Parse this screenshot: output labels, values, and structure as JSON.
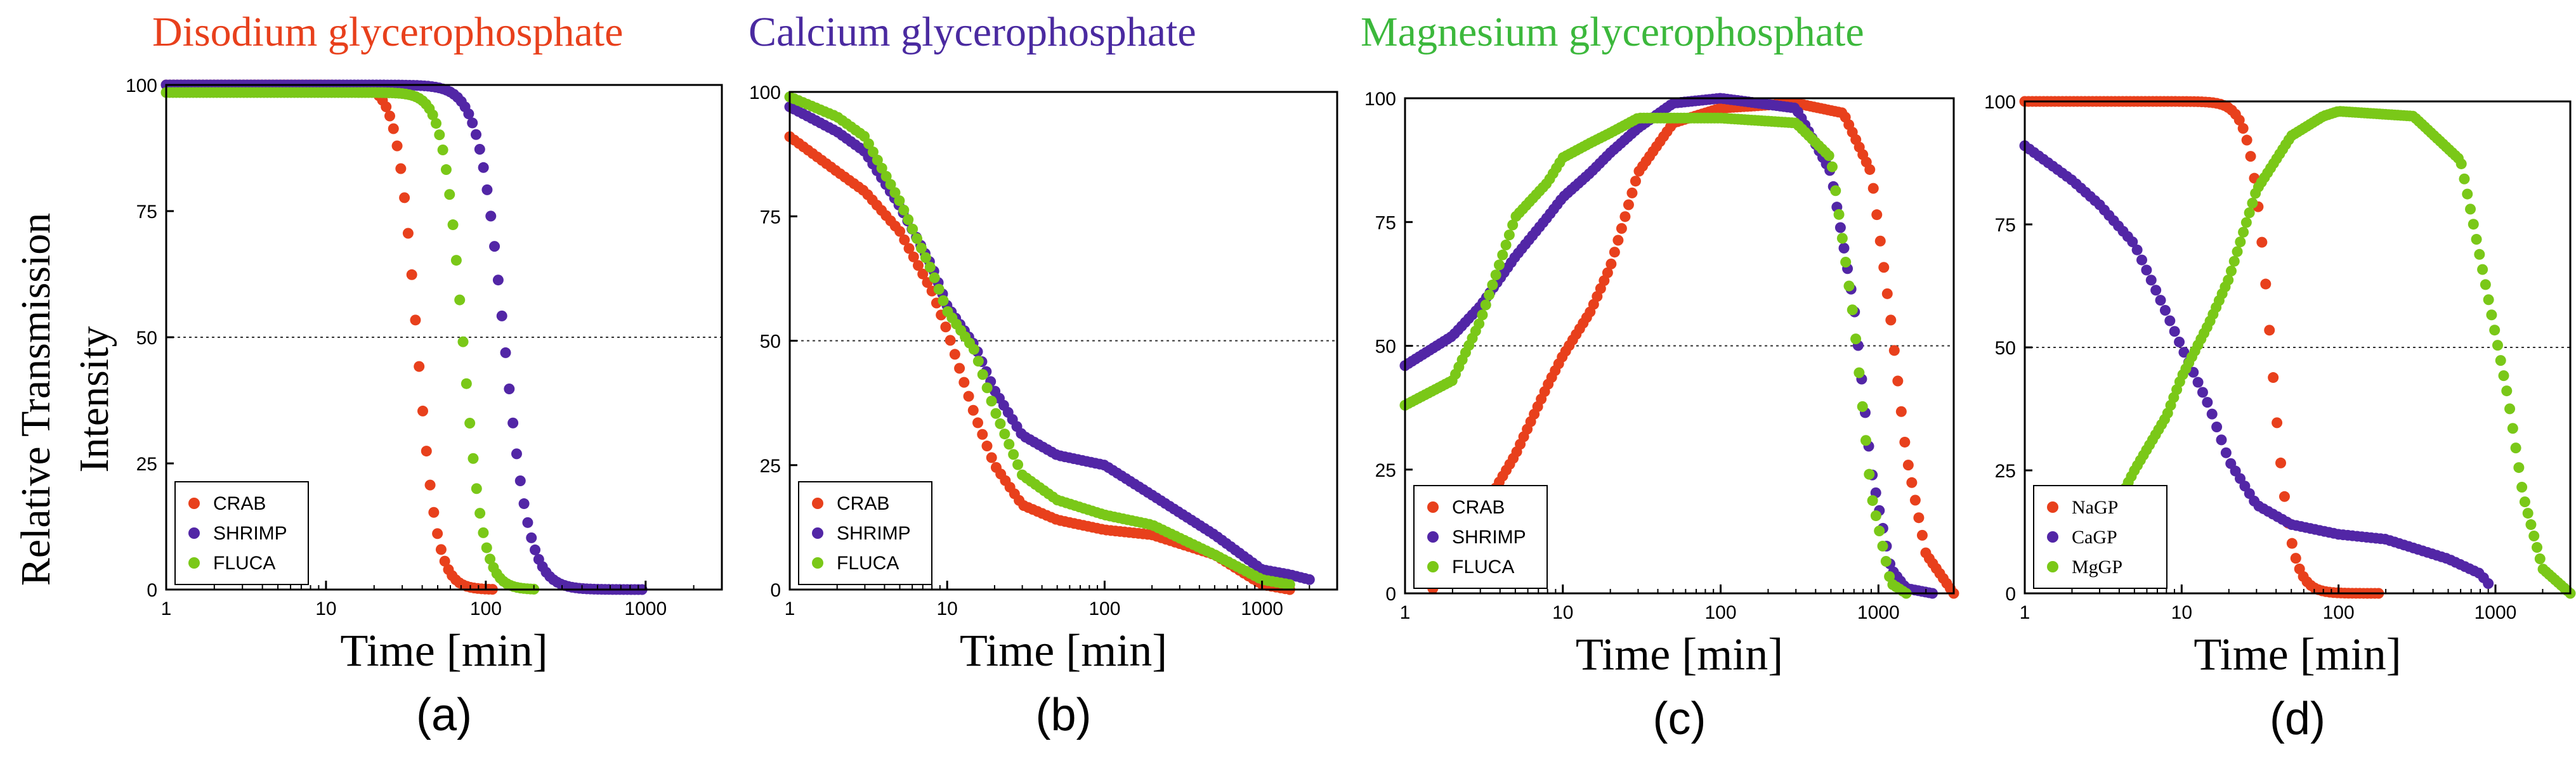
{
  "titles": [
    {
      "text": "Disodium glycerophosphate",
      "color": "#e8401c"
    },
    {
      "text": "Calcium glycerophosphate",
      "color": "#4a2aa0"
    },
    {
      "text": "Magnesium glycerophosphate",
      "color": "#3cb83c"
    }
  ],
  "ylabel_line1": "Relative Transmission",
  "ylabel_line2": "Intensity",
  "colors": {
    "red": "#e8401c",
    "purple": "#5226a6",
    "green": "#7ac818",
    "axis": "#000000"
  },
  "chart_data": [
    {
      "type": "scatter",
      "panel_label": "(a)",
      "xlabel": "Time [min]",
      "xscale": "log",
      "xlim": [
        1,
        3000
      ],
      "ylim": [
        0,
        100
      ],
      "xticks": [
        1,
        10,
        100,
        1000
      ],
      "xtick_labels": [
        "1",
        "10",
        "100",
        "1000"
      ],
      "yticks": [
        0,
        25,
        50,
        75,
        100
      ],
      "ytick_labels": [
        "0",
        "25",
        "50",
        "75",
        "100"
      ],
      "reference_line_y": 50,
      "legend_position": "bottom-left",
      "series": [
        {
          "name": "CRAB",
          "color": "#e8401c",
          "model": {
            "kind": "fall",
            "mid": 37,
            "steep": 7,
            "top": 100,
            "bottom": 0,
            "xmin": 1,
            "xmax": 110,
            "n": 90
          }
        },
        {
          "name": "SHRIMP",
          "color": "#5226a6",
          "model": {
            "kind": "fall",
            "mid": 130,
            "steep": 5.5,
            "top": 100,
            "bottom": 0,
            "xmin": 1,
            "xmax": 950,
            "n": 130
          }
        },
        {
          "name": "FLUCA",
          "color": "#7ac818",
          "model": {
            "kind": "fall",
            "mid": 72,
            "steep": 7,
            "top": 98.5,
            "bottom": 0,
            "xmin": 1,
            "xmax": 200,
            "n": 110
          }
        }
      ]
    },
    {
      "type": "scatter",
      "panel_label": "(b)",
      "xlabel": "Time [min]",
      "xscale": "log",
      "xlim": [
        1,
        3000
      ],
      "ylim": [
        0,
        100
      ],
      "xticks": [
        1,
        10,
        100,
        1000
      ],
      "xtick_labels": [
        "1",
        "10",
        "100",
        "1000"
      ],
      "yticks": [
        0,
        25,
        50,
        75,
        100
      ],
      "ytick_labels": [
        "0",
        "25",
        "50",
        "75",
        "100"
      ],
      "reference_line_y": 50,
      "legend_position": "bottom-left",
      "series": [
        {
          "name": "CRAB",
          "color": "#e8401c",
          "model": {
            "kind": "pw",
            "pts": [
              [
                1,
                91
              ],
              [
                2,
                84
              ],
              [
                3,
                80
              ],
              [
                5,
                72
              ],
              [
                8,
                60
              ],
              [
                10,
                52
              ],
              [
                15,
                35
              ],
              [
                20,
                25
              ],
              [
                30,
                17
              ],
              [
                50,
                14
              ],
              [
                100,
                12
              ],
              [
                200,
                11
              ],
              [
                500,
                7
              ],
              [
                1000,
                1
              ],
              [
                1500,
                0
              ]
            ],
            "n": 110
          }
        },
        {
          "name": "SHRIMP",
          "color": "#5226a6",
          "model": {
            "kind": "pw",
            "pts": [
              [
                1,
                97
              ],
              [
                2,
                92
              ],
              [
                3,
                88
              ],
              [
                5,
                77
              ],
              [
                8,
                65
              ],
              [
                10,
                57
              ],
              [
                15,
                49
              ],
              [
                20,
                40
              ],
              [
                30,
                31
              ],
              [
                50,
                27
              ],
              [
                100,
                25
              ],
              [
                200,
                19
              ],
              [
                500,
                11
              ],
              [
                1000,
                4
              ],
              [
                1500,
                3
              ],
              [
                2000,
                2
              ]
            ],
            "n": 120
          }
        },
        {
          "name": "FLUCA",
          "color": "#7ac818",
          "model": {
            "kind": "pw",
            "pts": [
              [
                1,
                99
              ],
              [
                2,
                95
              ],
              [
                3,
                91
              ],
              [
                5,
                78
              ],
              [
                8,
                64
              ],
              [
                10,
                56
              ],
              [
                15,
                48
              ],
              [
                20,
                36
              ],
              [
                30,
                23
              ],
              [
                50,
                18
              ],
              [
                100,
                15
              ],
              [
                200,
                13
              ],
              [
                500,
                7
              ],
              [
                1000,
                2
              ],
              [
                1500,
                1
              ]
            ],
            "n": 115
          }
        }
      ]
    },
    {
      "type": "scatter",
      "panel_label": "(c)",
      "xlabel": "Time [min]",
      "xscale": "log",
      "xlim": [
        1,
        3000
      ],
      "ylim": [
        0,
        100
      ],
      "xticks": [
        1,
        10,
        100,
        1000
      ],
      "xtick_labels": [
        "1",
        "10",
        "100",
        "1000"
      ],
      "yticks": [
        0,
        25,
        50,
        75,
        100
      ],
      "ytick_labels": [
        "0",
        "25",
        "50",
        "75",
        "100"
      ],
      "reference_line_y": 50,
      "legend_position": "bottom-left",
      "series": [
        {
          "name": "CRAB",
          "color": "#e8401c",
          "model": {
            "kind": "pw",
            "pts": [
              [
                1.5,
                1
              ],
              [
                2,
                10
              ],
              [
                3,
                16
              ],
              [
                5,
                28
              ],
              [
                8,
                42
              ],
              [
                10,
                48
              ],
              [
                15,
                57
              ],
              [
                20,
                66
              ],
              [
                30,
                85
              ],
              [
                50,
                95
              ],
              [
                100,
                98
              ],
              [
                300,
                99
              ],
              [
                600,
                97
              ],
              [
                900,
                85
              ],
              [
                1200,
                55
              ],
              [
                1500,
                28
              ],
              [
                2000,
                8
              ],
              [
                3000,
                0
              ]
            ],
            "n": 150
          }
        },
        {
          "name": "SHRIMP",
          "color": "#5226a6",
          "model": {
            "kind": "pw",
            "pts": [
              [
                1,
                46
              ],
              [
                2,
                52
              ],
              [
                3,
                58
              ],
              [
                5,
                68
              ],
              [
                8,
                76
              ],
              [
                10,
                80
              ],
              [
                15,
                85
              ],
              [
                20,
                89
              ],
              [
                30,
                94
              ],
              [
                50,
                99
              ],
              [
                100,
                100
              ],
              [
                300,
                98
              ],
              [
                500,
                85
              ],
              [
                700,
                58
              ],
              [
                900,
                25
              ],
              [
                1200,
                5
              ],
              [
                1500,
                1
              ],
              [
                2200,
                0
              ]
            ],
            "n": 150
          }
        },
        {
          "name": "FLUCA",
          "color": "#7ac818",
          "model": {
            "kind": "pw",
            "pts": [
              [
                1,
                38
              ],
              [
                2,
                43
              ],
              [
                3,
                55
              ],
              [
                5,
                76
              ],
              [
                8,
                83
              ],
              [
                10,
                88
              ],
              [
                15,
                91
              ],
              [
                20,
                93
              ],
              [
                30,
                96
              ],
              [
                50,
                96
              ],
              [
                100,
                96
              ],
              [
                300,
                95
              ],
              [
                500,
                88
              ],
              [
                700,
                55
              ],
              [
                900,
                20
              ],
              [
                1200,
                2
              ],
              [
                1500,
                0
              ]
            ],
            "n": 150
          }
        }
      ]
    },
    {
      "type": "scatter",
      "panel_label": "(d)",
      "xlabel": "Time [min]",
      "xscale": "log",
      "xlim": [
        1,
        3000
      ],
      "ylim": [
        0,
        100
      ],
      "xticks": [
        1,
        10,
        100,
        1000
      ],
      "xtick_labels": [
        "1",
        "10",
        "100",
        "1000"
      ],
      "yticks": [
        0,
        25,
        50,
        75,
        100
      ],
      "ytick_labels": [
        "0",
        "25",
        "50",
        "75",
        "100"
      ],
      "reference_line_y": 50,
      "legend_position": "bottom-left",
      "series": [
        {
          "name": "NaGP",
          "color": "#e8401c",
          "model": {
            "kind": "fall",
            "mid": 37,
            "steep": 7,
            "top": 100,
            "bottom": 0,
            "xmin": 1,
            "xmax": 180,
            "n": 95
          }
        },
        {
          "name": "CaGP",
          "color": "#5226a6",
          "model": {
            "kind": "pw",
            "pts": [
              [
                1,
                91
              ],
              [
                2,
                84
              ],
              [
                3,
                79
              ],
              [
                5,
                71
              ],
              [
                8,
                57
              ],
              [
                10,
                50
              ],
              [
                15,
                38
              ],
              [
                20,
                27
              ],
              [
                30,
                18
              ],
              [
                50,
                14
              ],
              [
                100,
                12
              ],
              [
                200,
                11
              ],
              [
                500,
                7
              ],
              [
                800,
                4
              ],
              [
                900,
                2
              ]
            ],
            "n": 100
          }
        },
        {
          "name": "MgGP",
          "color": "#7ac818",
          "model": {
            "kind": "pw",
            "pts": [
              [
                4,
                19
              ],
              [
                5,
                25
              ],
              [
                8,
                36
              ],
              [
                10,
                44
              ],
              [
                15,
                55
              ],
              [
                20,
                64
              ],
              [
                30,
                82
              ],
              [
                50,
                93
              ],
              [
                80,
                97
              ],
              [
                100,
                98
              ],
              [
                300,
                97
              ],
              [
                600,
                88
              ],
              [
                900,
                60
              ],
              [
                1200,
                40
              ],
              [
                1500,
                20
              ],
              [
                2000,
                5
              ],
              [
                3000,
                0
              ]
            ],
            "n": 150
          }
        }
      ]
    }
  ]
}
